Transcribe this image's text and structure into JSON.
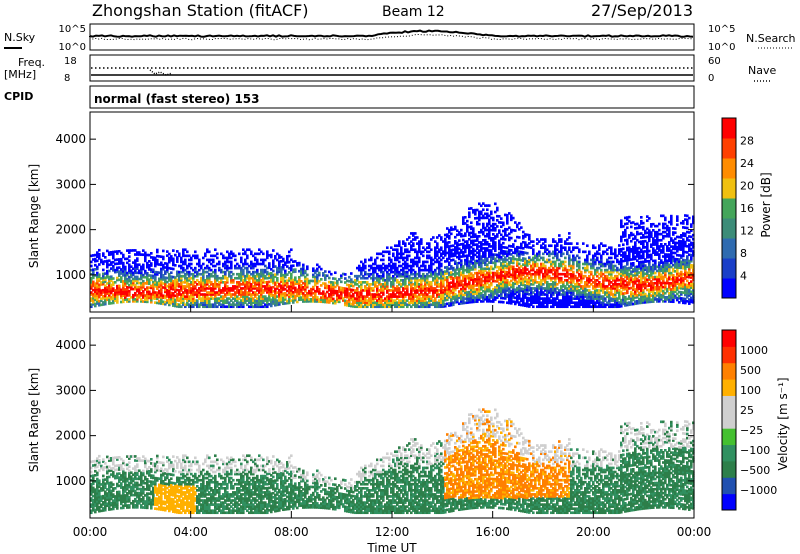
{
  "header": {
    "station": "Zhongshan Station (fitACF)",
    "beam": "Beam 12",
    "date": "27/Sep/2013"
  },
  "top_panels": {
    "nsky_label": "N.Sky",
    "nsky_ticks": [
      "10^5",
      "10^0"
    ],
    "nsearch_label": "N.Search",
    "nsearch_ticks": [
      "10^5",
      "10^0"
    ],
    "freq_label_1": "Freq.",
    "freq_label_2": "[MHz]",
    "freq_ticks": [
      "18",
      "8"
    ],
    "nave_label": "Nave",
    "nave_ticks": [
      "60",
      "0"
    ],
    "cpid_label": "CPID",
    "cpid_text": "normal (fast stereo) 153"
  },
  "colors": {
    "power": [
      "#0000ff",
      "#1a3fc8",
      "#2f6bb0",
      "#3c8c78",
      "#44a55a",
      "#f0c010",
      "#ff8c00",
      "#ff4000",
      "#ff0000"
    ],
    "velocity": [
      "#ff0000",
      "#ff3000",
      "#ff8000",
      "#ffb000",
      "#cfcfcf",
      "#cfcfcf",
      "#44c030",
      "#309060",
      "#2d7f4a",
      "#2050b0",
      "#0000ff"
    ]
  },
  "chart_data": [
    {
      "type": "heatmap",
      "name": "power-panel",
      "xlabel": "",
      "ylabel": "Slant Range [km]",
      "ylim": [
        180,
        4600
      ],
      "yticks": [
        "4000",
        "3000",
        "2000",
        "1000"
      ],
      "ytick_values": [
        4000,
        3000,
        2000,
        1000
      ],
      "colorbar_label": "Power [dB]",
      "colorbar_ticks": [
        "28",
        "24",
        "20",
        "16",
        "12",
        "8",
        "4"
      ],
      "colorbar_tick_values": [
        28,
        24,
        20,
        16,
        12,
        8,
        4
      ],
      "colorbar_range": [
        0,
        32
      ]
    },
    {
      "type": "heatmap",
      "name": "velocity-panel",
      "xlabel": "Time UT",
      "ylabel": "Slant Range [km]",
      "ylim": [
        180,
        4600
      ],
      "xlim_hours": [
        0,
        24
      ],
      "xticks": [
        "00:00",
        "04:00",
        "08:00",
        "12:00",
        "16:00",
        "20:00",
        "00:00"
      ],
      "xtick_hours": [
        0,
        4,
        8,
        12,
        16,
        20,
        24
      ],
      "yticks": [
        "4000",
        "3000",
        "2000",
        "1000"
      ],
      "ytick_values": [
        4000,
        3000,
        2000,
        1000
      ],
      "colorbar_label": "Velocity [m s⁻¹]",
      "colorbar_ticks": [
        "1000",
        "500",
        "100",
        "25",
        "−25",
        "−100",
        "−500",
        "−1000"
      ]
    }
  ]
}
